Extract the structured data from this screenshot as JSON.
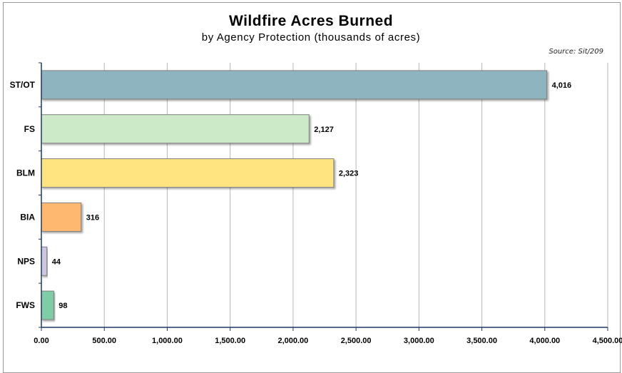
{
  "chart_data": {
    "type": "bar",
    "orientation": "horizontal",
    "title": "Wildfire Acres Burned",
    "subtitle": "by Agency Protection (thousands of acres)",
    "source_note": "Source: Sit/209",
    "categories": [
      "ST/OT",
      "FS",
      "BLM",
      "BIA",
      "NPS",
      "FWS"
    ],
    "values": [
      4016,
      2127,
      2323,
      316,
      44,
      98
    ],
    "value_labels": [
      "4,016",
      "2,127",
      "2,323",
      "316",
      "44",
      "98"
    ],
    "bar_colors": [
      "#8eb4bf",
      "#cdeac8",
      "#ffe47f",
      "#ffb870",
      "#ccc6e0",
      "#7fcda6"
    ],
    "xlim": [
      0,
      4500
    ],
    "xticks": [
      0,
      500,
      1000,
      1500,
      2000,
      2500,
      3000,
      3500,
      4000,
      4500
    ],
    "xtick_labels": [
      "0.00",
      "500.00",
      "1,000.00",
      "1,500.00",
      "2,000.00",
      "2,500.00",
      "3,000.00",
      "3,500.00",
      "4,000.00",
      "4,500.00"
    ],
    "xlabel": "",
    "ylabel": "",
    "grid": "vertical",
    "legend": "none"
  }
}
